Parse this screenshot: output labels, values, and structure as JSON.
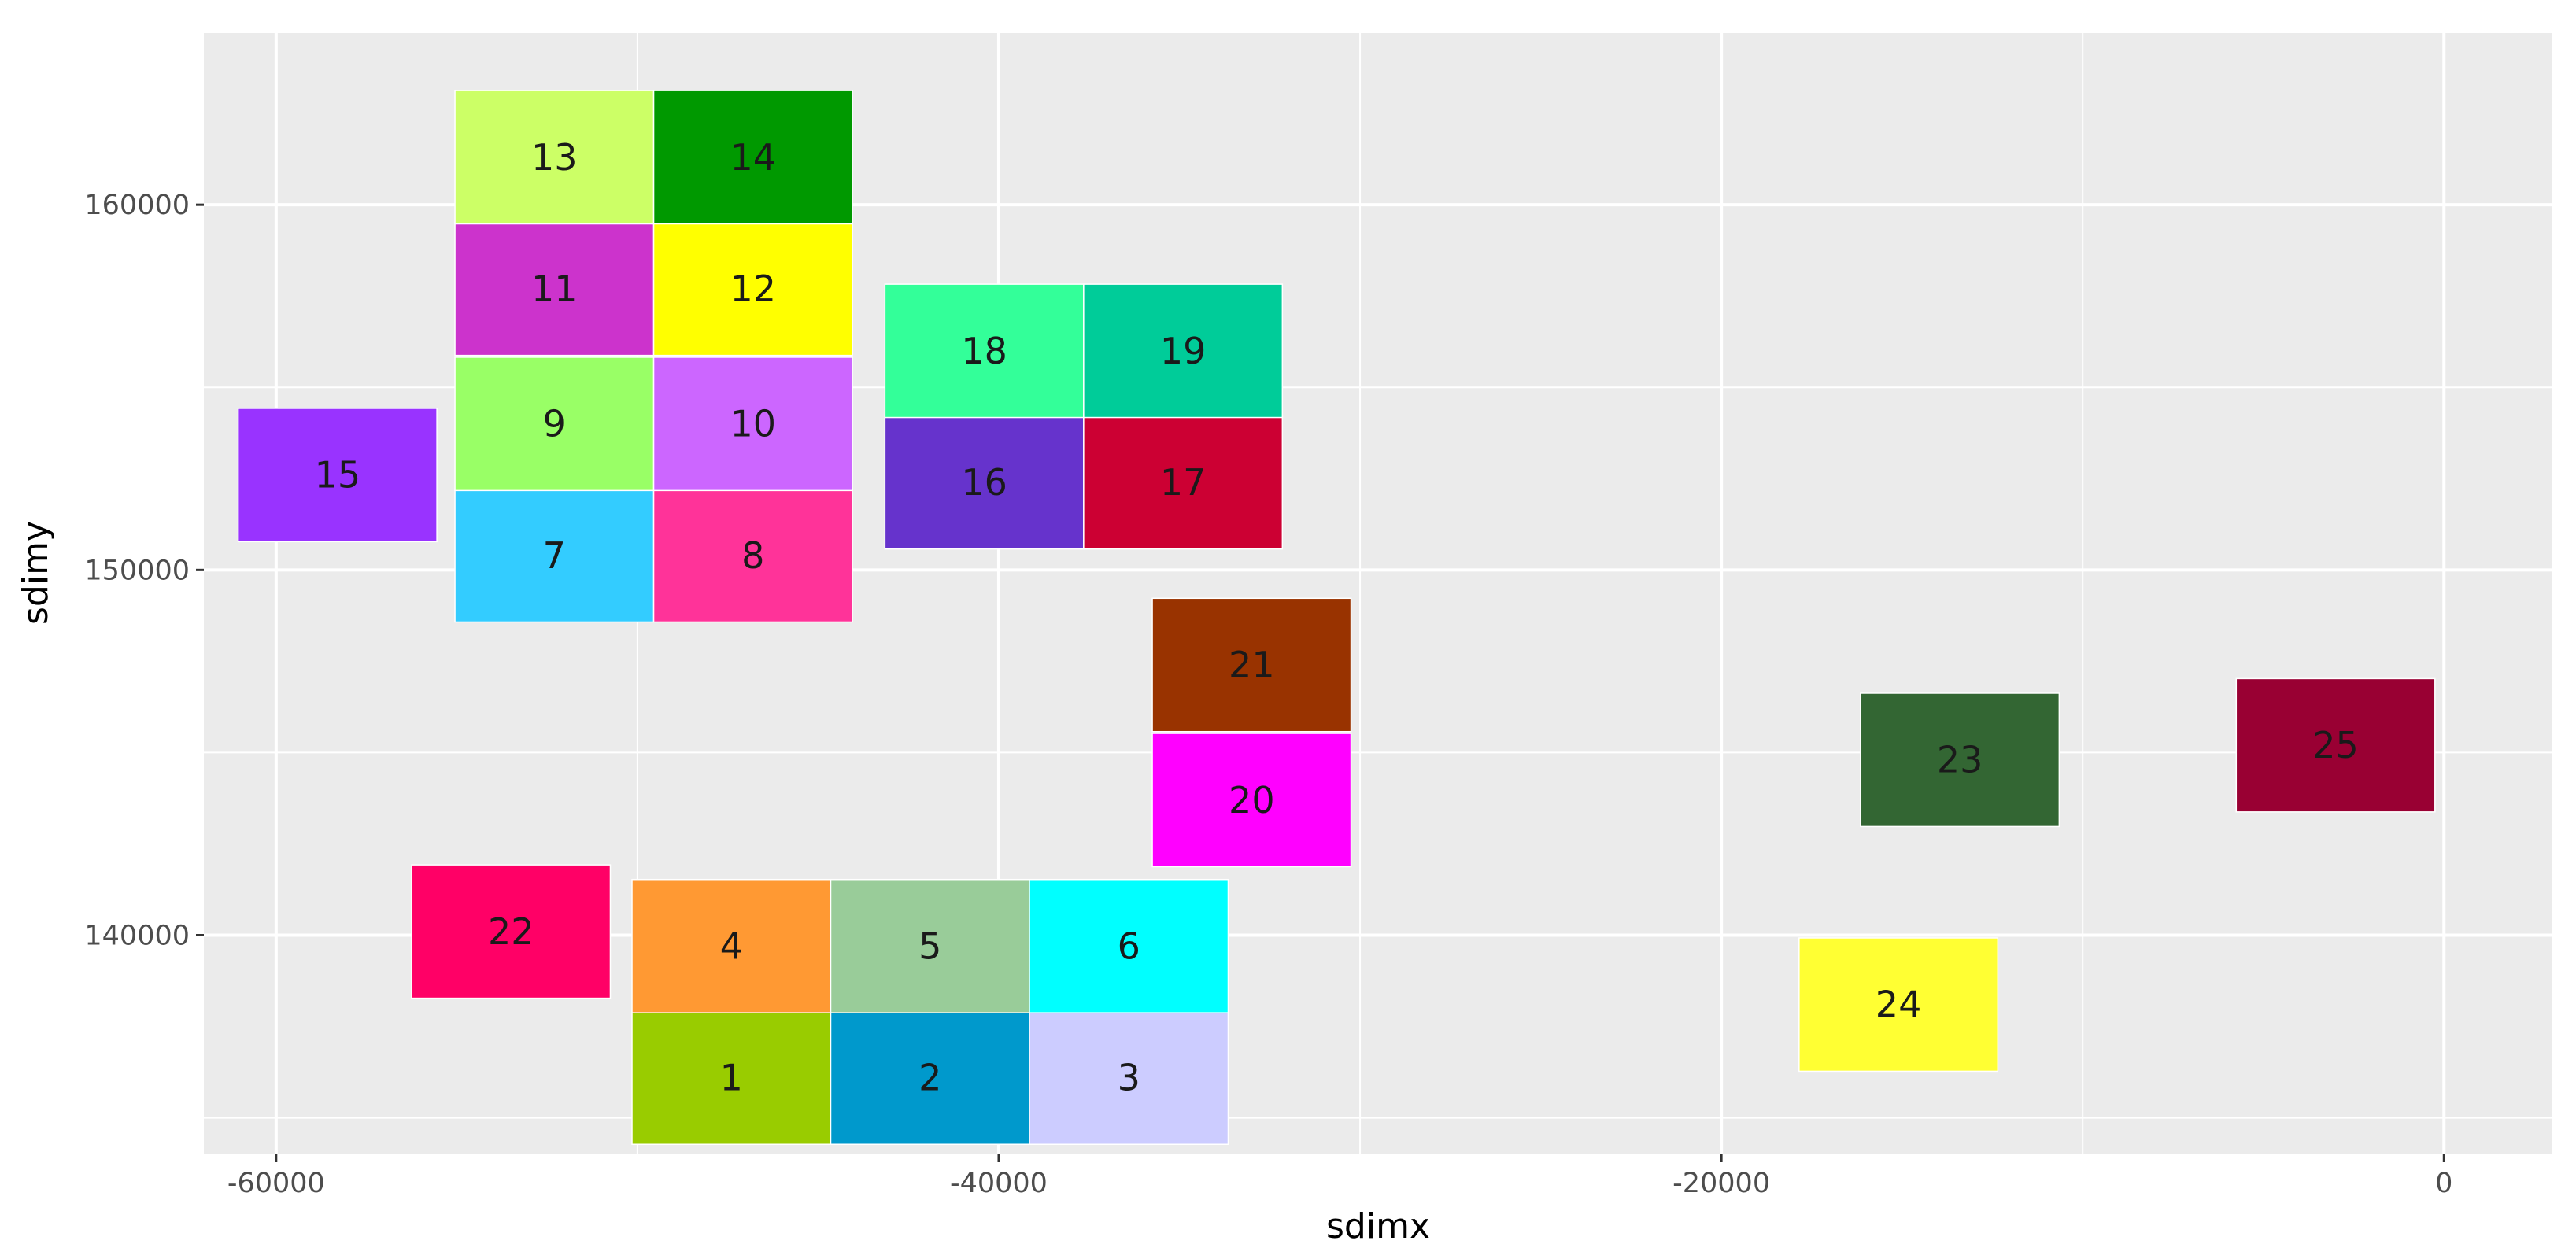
{
  "chart_data": {
    "type": "heatmap",
    "xlabel": "sdimx",
    "ylabel": "sdimy",
    "xlim": [
      -62000,
      3000
    ],
    "ylim": [
      134000,
      164700
    ],
    "x_ticks": [
      -60000,
      -40000,
      -20000,
      0
    ],
    "x_tick_labels": [
      "-60000",
      "-40000",
      "-20000",
      "0"
    ],
    "y_ticks": [
      140000,
      150000,
      160000
    ],
    "y_tick_labels": [
      "140000",
      "150000",
      "160000"
    ],
    "grid": true,
    "panel_background": "#ebebeb",
    "grid_color": "#ffffff",
    "tiles": [
      {
        "label": "1",
        "x": -47400,
        "y": 136100,
        "fill": "#99cc00"
      },
      {
        "label": "2",
        "x": -41900,
        "y": 136100,
        "fill": "#0099cc"
      },
      {
        "label": "3",
        "x": -36400,
        "y": 136100,
        "fill": "#ccccff"
      },
      {
        "label": "4",
        "x": -47400,
        "y": 139700,
        "fill": "#ff9933"
      },
      {
        "label": "5",
        "x": -41900,
        "y": 139700,
        "fill": "#99cc99"
      },
      {
        "label": "6",
        "x": -36400,
        "y": 139700,
        "fill": "#00ffff"
      },
      {
        "label": "7",
        "x": -52300,
        "y": 150400,
        "fill": "#33ccff"
      },
      {
        "label": "8",
        "x": -46800,
        "y": 150400,
        "fill": "#ff3399"
      },
      {
        "label": "9",
        "x": -52300,
        "y": 154000,
        "fill": "#99ff66"
      },
      {
        "label": "10",
        "x": -46800,
        "y": 154000,
        "fill": "#cc66ff"
      },
      {
        "label": "11",
        "x": -52300,
        "y": 157700,
        "fill": "#cc33cc"
      },
      {
        "label": "12",
        "x": -46800,
        "y": 157700,
        "fill": "#ffff00"
      },
      {
        "label": "13",
        "x": -52300,
        "y": 161300,
        "fill": "#ccff66"
      },
      {
        "label": "14",
        "x": -46800,
        "y": 161300,
        "fill": "#009900"
      },
      {
        "label": "15",
        "x": -58300,
        "y": 152600,
        "fill": "#9933ff"
      },
      {
        "label": "16",
        "x": -40400,
        "y": 152400,
        "fill": "#6633cc"
      },
      {
        "label": "17",
        "x": -34900,
        "y": 152400,
        "fill": "#cc0033"
      },
      {
        "label": "18",
        "x": -40400,
        "y": 156000,
        "fill": "#33ff99"
      },
      {
        "label": "19",
        "x": -34900,
        "y": 156000,
        "fill": "#00cc99"
      },
      {
        "label": "20",
        "x": -33000,
        "y": 143700,
        "fill": "#ff00ff"
      },
      {
        "label": "21",
        "x": -33000,
        "y": 147400,
        "fill": "#993300"
      },
      {
        "label": "22",
        "x": -53500,
        "y": 140100,
        "fill": "#ff0066"
      },
      {
        "label": "23",
        "x": -13400,
        "y": 144800,
        "fill": "#336633"
      },
      {
        "label": "24",
        "x": -15100,
        "y": 138100,
        "fill": "#ffff33"
      },
      {
        "label": "25",
        "x": -3000,
        "y": 145200,
        "fill": "#990033"
      }
    ]
  }
}
